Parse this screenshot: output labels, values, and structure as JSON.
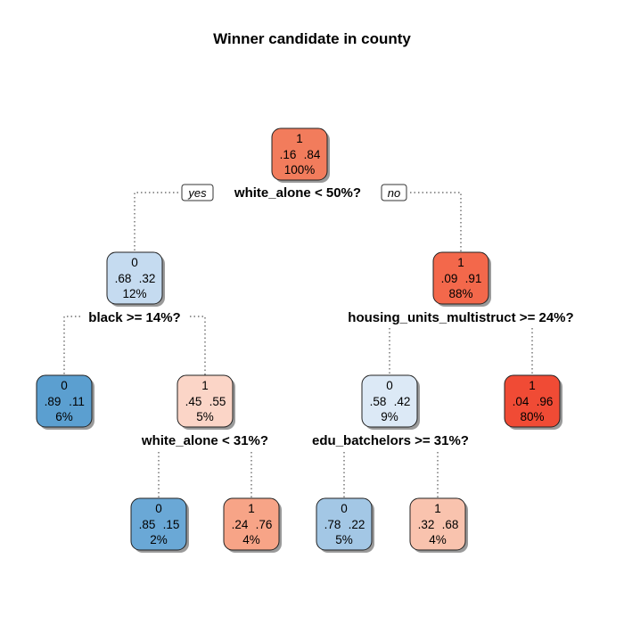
{
  "title": "Winner candidate in county",
  "yes_label": "yes",
  "no_label": "no",
  "nodes": [
    {
      "id": "root",
      "class": "1",
      "p0": ".16",
      "p1": ".84",
      "pct": "100%",
      "color": "#f27c5c"
    },
    {
      "id": "n2",
      "class": "0",
      "p0": ".68",
      "p1": ".32",
      "pct": "12%",
      "color": "#c5dbf0"
    },
    {
      "id": "n3",
      "class": "1",
      "p0": ".09",
      "p1": ".91",
      "pct": "88%",
      "color": "#f3684b"
    },
    {
      "id": "n4",
      "class": "0",
      "p0": ".89",
      "p1": ".11",
      "pct": "6%",
      "color": "#5b9fd0"
    },
    {
      "id": "n5",
      "class": "1",
      "p0": ".45",
      "p1": ".55",
      "pct": "5%",
      "color": "#fbd5c7"
    },
    {
      "id": "n6",
      "class": "0",
      "p0": ".58",
      "p1": ".42",
      "pct": "9%",
      "color": "#dce9f6"
    },
    {
      "id": "n7",
      "class": "1",
      "p0": ".04",
      "p1": ".96",
      "pct": "80%",
      "color": "#f04b35"
    },
    {
      "id": "n10",
      "class": "0",
      "p0": ".85",
      "p1": ".15",
      "pct": "2%",
      "color": "#6aa8d6"
    },
    {
      "id": "n11",
      "class": "1",
      "p0": ".24",
      "p1": ".76",
      "pct": "4%",
      "color": "#f7a487"
    },
    {
      "id": "n12",
      "class": "0",
      "p0": ".78",
      "p1": ".22",
      "pct": "5%",
      "color": "#a3c7e5"
    },
    {
      "id": "n13",
      "class": "1",
      "p0": ".32",
      "p1": ".68",
      "pct": "4%",
      "color": "#f9c3ae"
    }
  ],
  "splits": [
    {
      "id": "s1",
      "text": "white_alone < 50%?"
    },
    {
      "id": "s2",
      "text": "black >= 14%?"
    },
    {
      "id": "s3",
      "text": "housing_units_multistruct >= 24%?"
    },
    {
      "id": "s4",
      "text": "white_alone < 31%?"
    },
    {
      "id": "s5",
      "text": "edu_batchelors >= 31%?"
    }
  ]
}
